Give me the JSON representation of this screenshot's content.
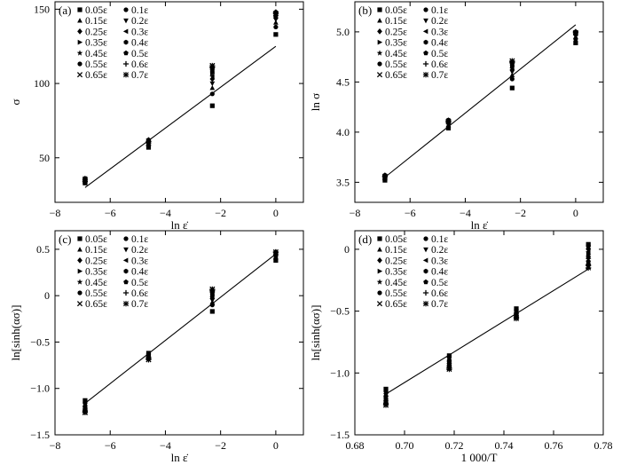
{
  "chart_data": [
    {
      "type": "scatter",
      "panel_label": "(a)",
      "xlabel": "ln ε̇",
      "ylabel": "σ",
      "xlim": [
        -8,
        1
      ],
      "ylim": [
        20,
        155
      ],
      "xticks": [
        -8,
        -6,
        -4,
        -2,
        0
      ],
      "yticks": [
        50,
        100,
        150
      ],
      "xtick_labels": [
        "−8",
        "−6",
        "−4",
        "−2",
        "0"
      ],
      "ytick_labels": [
        "50",
        "100",
        "150"
      ],
      "x": [
        -6.91,
        -4.61,
        -2.3,
        0.0
      ],
      "series": [
        {
          "name": "0.05ε",
          "marker": "square",
          "values": [
            33,
            57,
            85,
            133
          ]
        },
        {
          "name": "0.1ε",
          "marker": "circle",
          "values": [
            34,
            58,
            93,
            138
          ]
        },
        {
          "name": "0.15ε",
          "marker": "tri-up",
          "values": [
            35,
            59,
            97,
            141
          ]
        },
        {
          "name": "0.2ε",
          "marker": "tri-down",
          "values": [
            35,
            60,
            100,
            143
          ]
        },
        {
          "name": "0.25ε",
          "marker": "diamond",
          "values": [
            35,
            60,
            103,
            144
          ]
        },
        {
          "name": "0.3ε",
          "marker": "tri-left",
          "values": [
            36,
            61,
            105,
            145
          ]
        },
        {
          "name": "0.35ε",
          "marker": "tri-right",
          "values": [
            36,
            61,
            107,
            146
          ]
        },
        {
          "name": "0.4ε",
          "marker": "hexagon",
          "values": [
            36,
            62,
            108,
            147
          ]
        },
        {
          "name": "0.45ε",
          "marker": "star",
          "values": [
            36,
            62,
            109,
            147
          ]
        },
        {
          "name": "0.5ε",
          "marker": "pentagon",
          "values": [
            36,
            62,
            110,
            148
          ]
        },
        {
          "name": "0.55ε",
          "marker": "circle",
          "values": [
            35,
            61,
            111,
            148
          ]
        },
        {
          "name": "0.6ε",
          "marker": "plus",
          "values": [
            35,
            61,
            111,
            148
          ]
        },
        {
          "name": "0.65ε",
          "marker": "x",
          "values": [
            35,
            60,
            112,
            147
          ]
        },
        {
          "name": "0.7ε",
          "marker": "asterisk",
          "values": [
            34,
            60,
            112,
            147
          ]
        }
      ],
      "fit_line": {
        "x": [
          -6.91,
          0.0
        ],
        "y": [
          30,
          125
        ]
      }
    },
    {
      "type": "scatter",
      "panel_label": "(b)",
      "xlabel": "ln ε̇",
      "ylabel": "ln σ",
      "xlim": [
        -8,
        1
      ],
      "ylim": [
        3.3,
        5.3
      ],
      "xticks": [
        -8,
        -6,
        -4,
        -2,
        0
      ],
      "yticks": [
        3.5,
        4.0,
        4.5,
        5.0
      ],
      "xtick_labels": [
        "−8",
        "−6",
        "−4",
        "−2",
        "0"
      ],
      "ytick_labels": [
        "3.5",
        "4.0",
        "4.5",
        "5.0"
      ],
      "x": [
        -6.91,
        -4.61,
        -2.3,
        0.0
      ],
      "series": [
        {
          "name": "0.05ε",
          "marker": "square",
          "values": [
            3.52,
            4.04,
            4.44,
            4.89
          ]
        },
        {
          "name": "0.1ε",
          "marker": "circle",
          "values": [
            3.53,
            4.05,
            4.53,
            4.93
          ]
        },
        {
          "name": "0.15ε",
          "marker": "tri-up",
          "values": [
            3.54,
            4.07,
            4.57,
            4.95
          ]
        },
        {
          "name": "0.2ε",
          "marker": "tri-down",
          "values": [
            3.55,
            4.08,
            4.6,
            4.96
          ]
        },
        {
          "name": "0.25ε",
          "marker": "diamond",
          "values": [
            3.55,
            4.09,
            4.62,
            4.97
          ]
        },
        {
          "name": "0.3ε",
          "marker": "tri-left",
          "values": [
            3.56,
            4.1,
            4.64,
            4.98
          ]
        },
        {
          "name": "0.35ε",
          "marker": "tri-right",
          "values": [
            3.56,
            4.1,
            4.66,
            4.99
          ]
        },
        {
          "name": "0.4ε",
          "marker": "hexagon",
          "values": [
            3.57,
            4.11,
            4.67,
            4.99
          ]
        },
        {
          "name": "0.45ε",
          "marker": "star",
          "values": [
            3.57,
            4.11,
            4.68,
            5.0
          ]
        },
        {
          "name": "0.5ε",
          "marker": "pentagon",
          "values": [
            3.57,
            4.12,
            4.69,
            5.0
          ]
        },
        {
          "name": "0.55ε",
          "marker": "circle",
          "values": [
            3.56,
            4.12,
            4.7,
            5.0
          ]
        },
        {
          "name": "0.6ε",
          "marker": "plus",
          "values": [
            3.56,
            4.11,
            4.7,
            5.0
          ]
        },
        {
          "name": "0.65ε",
          "marker": "x",
          "values": [
            3.55,
            4.11,
            4.71,
            4.99
          ]
        },
        {
          "name": "0.7ε",
          "marker": "asterisk",
          "values": [
            3.55,
            4.1,
            4.71,
            4.99
          ]
        }
      ],
      "fit_line": {
        "x": [
          -6.91,
          0.0
        ],
        "y": [
          3.55,
          5.07
        ]
      }
    },
    {
      "type": "scatter",
      "panel_label": "(c)",
      "xlabel": "ln ε̇",
      "ylabel": "ln[sinh(ασ)]",
      "xlim": [
        -8,
        1
      ],
      "ylim": [
        -1.5,
        0.7
      ],
      "xticks": [
        -8,
        -6,
        -4,
        -2,
        0
      ],
      "yticks": [
        -1.5,
        -1.0,
        -0.5,
        0,
        0.5
      ],
      "xtick_labels": [
        "−8",
        "−6",
        "−4",
        "−2",
        "0"
      ],
      "ytick_labels": [
        "−1.5",
        "−1.0",
        "−0.5",
        "0",
        "0.5"
      ],
      "x": [
        -6.91,
        -4.61,
        -2.3,
        0.0
      ],
      "series": [
        {
          "name": "0.05ε",
          "marker": "square",
          "values": [
            -1.13,
            -0.62,
            -0.17,
            0.38
          ]
        },
        {
          "name": "0.1ε",
          "marker": "circle",
          "values": [
            -1.15,
            -0.63,
            -0.1,
            0.4
          ]
        },
        {
          "name": "0.15ε",
          "marker": "tri-up",
          "values": [
            -1.17,
            -0.64,
            -0.07,
            0.41
          ]
        },
        {
          "name": "0.2ε",
          "marker": "tri-down",
          "values": [
            -1.18,
            -0.65,
            -0.05,
            0.42
          ]
        },
        {
          "name": "0.25ε",
          "marker": "diamond",
          "values": [
            -1.19,
            -0.65,
            -0.03,
            0.43
          ]
        },
        {
          "name": "0.3ε",
          "marker": "tri-left",
          "values": [
            -1.2,
            -0.66,
            -0.01,
            0.44
          ]
        },
        {
          "name": "0.35ε",
          "marker": "tri-right",
          "values": [
            -1.21,
            -0.66,
            0.0,
            0.44
          ]
        },
        {
          "name": "0.4ε",
          "marker": "hexagon",
          "values": [
            -1.22,
            -0.67,
            0.02,
            0.45
          ]
        },
        {
          "name": "0.45ε",
          "marker": "star",
          "values": [
            -1.23,
            -0.67,
            0.03,
            0.46
          ]
        },
        {
          "name": "0.5ε",
          "marker": "pentagon",
          "values": [
            -1.24,
            -0.68,
            0.04,
            0.46
          ]
        },
        {
          "name": "0.55ε",
          "marker": "circle",
          "values": [
            -1.25,
            -0.68,
            0.05,
            0.47
          ]
        },
        {
          "name": "0.6ε",
          "marker": "plus",
          "values": [
            -1.25,
            -0.68,
            0.06,
            0.47
          ]
        },
        {
          "name": "0.65ε",
          "marker": "x",
          "values": [
            -1.26,
            -0.69,
            0.07,
            0.47
          ]
        },
        {
          "name": "0.7ε",
          "marker": "asterisk",
          "values": [
            -1.26,
            -0.69,
            0.07,
            0.47
          ]
        }
      ],
      "fit_line": {
        "x": [
          -6.91,
          0.0
        ],
        "y": [
          -1.16,
          0.45
        ]
      }
    },
    {
      "type": "scatter",
      "panel_label": "(d)",
      "xlabel": "1 000/T",
      "ylabel": "ln[sinh(ασ)]",
      "xlim": [
        0.68,
        0.78
      ],
      "ylim": [
        -1.5,
        0.15
      ],
      "xticks": [
        0.68,
        0.7,
        0.72,
        0.74,
        0.76,
        0.78
      ],
      "yticks": [
        -1.5,
        -1.0,
        -0.5,
        0
      ],
      "xtick_labels": [
        "0.68",
        "0.70",
        "0.72",
        "0.74",
        "0.76",
        "0.78"
      ],
      "ytick_labels": [
        "−1.5",
        "−1.0",
        "−0.5",
        "0"
      ],
      "x": [
        0.6925,
        0.718,
        0.745,
        0.774
      ],
      "series": [
        {
          "name": "0.05ε",
          "marker": "square",
          "values": [
            -1.13,
            -0.86,
            -0.48,
            0.04
          ]
        },
        {
          "name": "0.1ε",
          "marker": "circle",
          "values": [
            -1.15,
            -0.87,
            -0.49,
            0.03
          ]
        },
        {
          "name": "0.15ε",
          "marker": "tri-up",
          "values": [
            -1.17,
            -0.88,
            -0.5,
            0.02
          ]
        },
        {
          "name": "0.2ε",
          "marker": "tri-down",
          "values": [
            -1.18,
            -0.89,
            -0.51,
            0.01
          ]
        },
        {
          "name": "0.25ε",
          "marker": "diamond",
          "values": [
            -1.19,
            -0.9,
            -0.51,
            0.0
          ]
        },
        {
          "name": "0.3ε",
          "marker": "tri-left",
          "values": [
            -1.2,
            -0.91,
            -0.52,
            -0.02
          ]
        },
        {
          "name": "0.35ε",
          "marker": "tri-right",
          "values": [
            -1.21,
            -0.91,
            -0.52,
            -0.04
          ]
        },
        {
          "name": "0.4ε",
          "marker": "hexagon",
          "values": [
            -1.22,
            -0.92,
            -0.53,
            -0.06
          ]
        },
        {
          "name": "0.45ε",
          "marker": "star",
          "values": [
            -1.23,
            -0.93,
            -0.53,
            -0.08
          ]
        },
        {
          "name": "0.5ε",
          "marker": "pentagon",
          "values": [
            -1.24,
            -0.94,
            -0.54,
            -0.1
          ]
        },
        {
          "name": "0.55ε",
          "marker": "circle",
          "values": [
            -1.25,
            -0.95,
            -0.54,
            -0.12
          ]
        },
        {
          "name": "0.6ε",
          "marker": "plus",
          "values": [
            -1.25,
            -0.96,
            -0.55,
            -0.13
          ]
        },
        {
          "name": "0.65ε",
          "marker": "x",
          "values": [
            -1.26,
            -0.96,
            -0.55,
            -0.14
          ]
        },
        {
          "name": "0.7ε",
          "marker": "asterisk",
          "values": [
            -1.26,
            -0.97,
            -0.56,
            -0.15
          ]
        }
      ],
      "fit_line": {
        "x": [
          0.6925,
          0.774
        ],
        "y": [
          -1.17,
          -0.16
        ]
      }
    }
  ]
}
